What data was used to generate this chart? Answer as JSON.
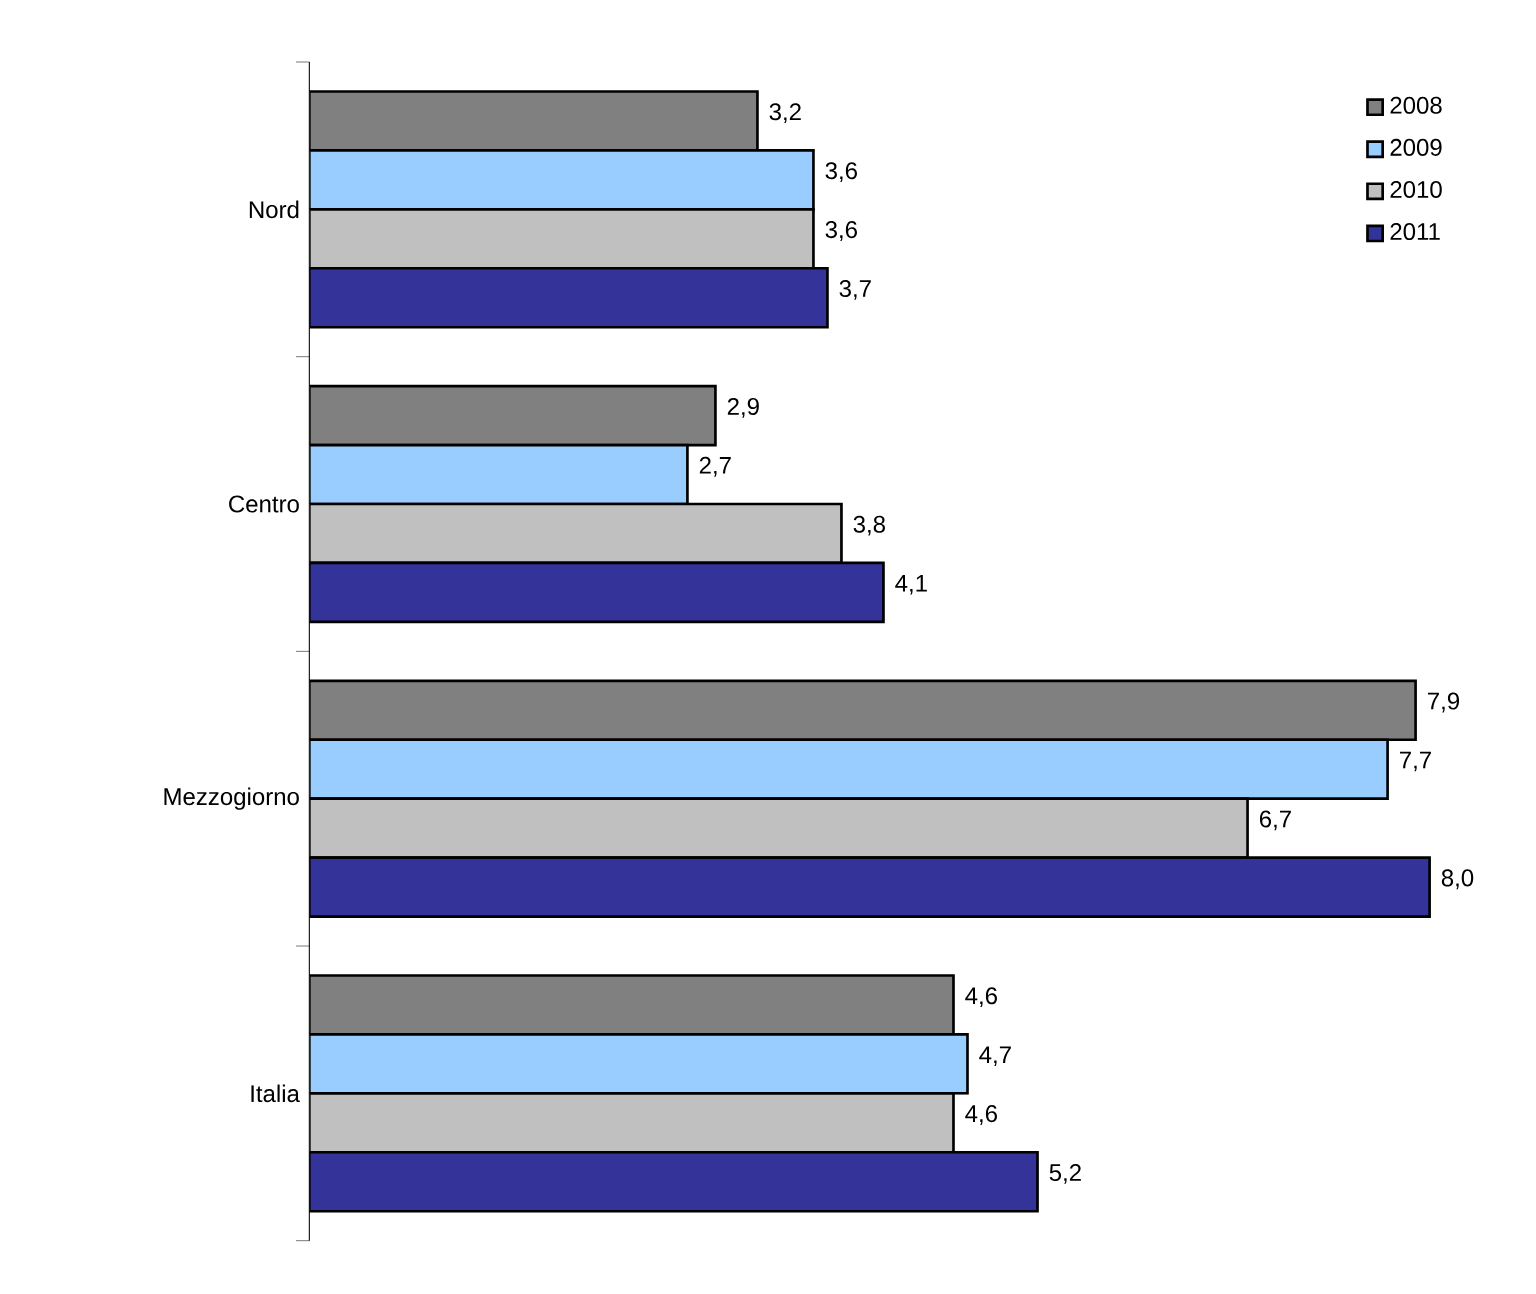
{
  "chart_data": {
    "type": "bar",
    "orientation": "horizontal",
    "categories": [
      "Nord",
      "Centro",
      "Mezzogiorno",
      "Italia"
    ],
    "series": [
      {
        "name": "2008",
        "color": "#808080",
        "values": [
          3.2,
          2.9,
          7.9,
          4.6
        ],
        "value_labels": [
          "3,2",
          "2,9",
          "7,9",
          "4,6"
        ]
      },
      {
        "name": "2009",
        "color": "#99ccff",
        "values": [
          3.6,
          2.7,
          7.7,
          4.7
        ],
        "value_labels": [
          "3,6",
          "2,7",
          "7,7",
          "4,7"
        ]
      },
      {
        "name": "2010",
        "color": "#c0c0c0",
        "values": [
          3.6,
          3.8,
          6.7,
          4.6
        ],
        "value_labels": [
          "3,6",
          "3,8",
          "6,7",
          "4,6"
        ]
      },
      {
        "name": "2011",
        "color": "#333399",
        "values": [
          3.7,
          4.1,
          8.0,
          5.2
        ],
        "value_labels": [
          "3,7",
          "4,1",
          "8,0",
          "5,2"
        ]
      }
    ],
    "legend": "top right",
    "grid": false,
    "tick_labels": "y"
  }
}
